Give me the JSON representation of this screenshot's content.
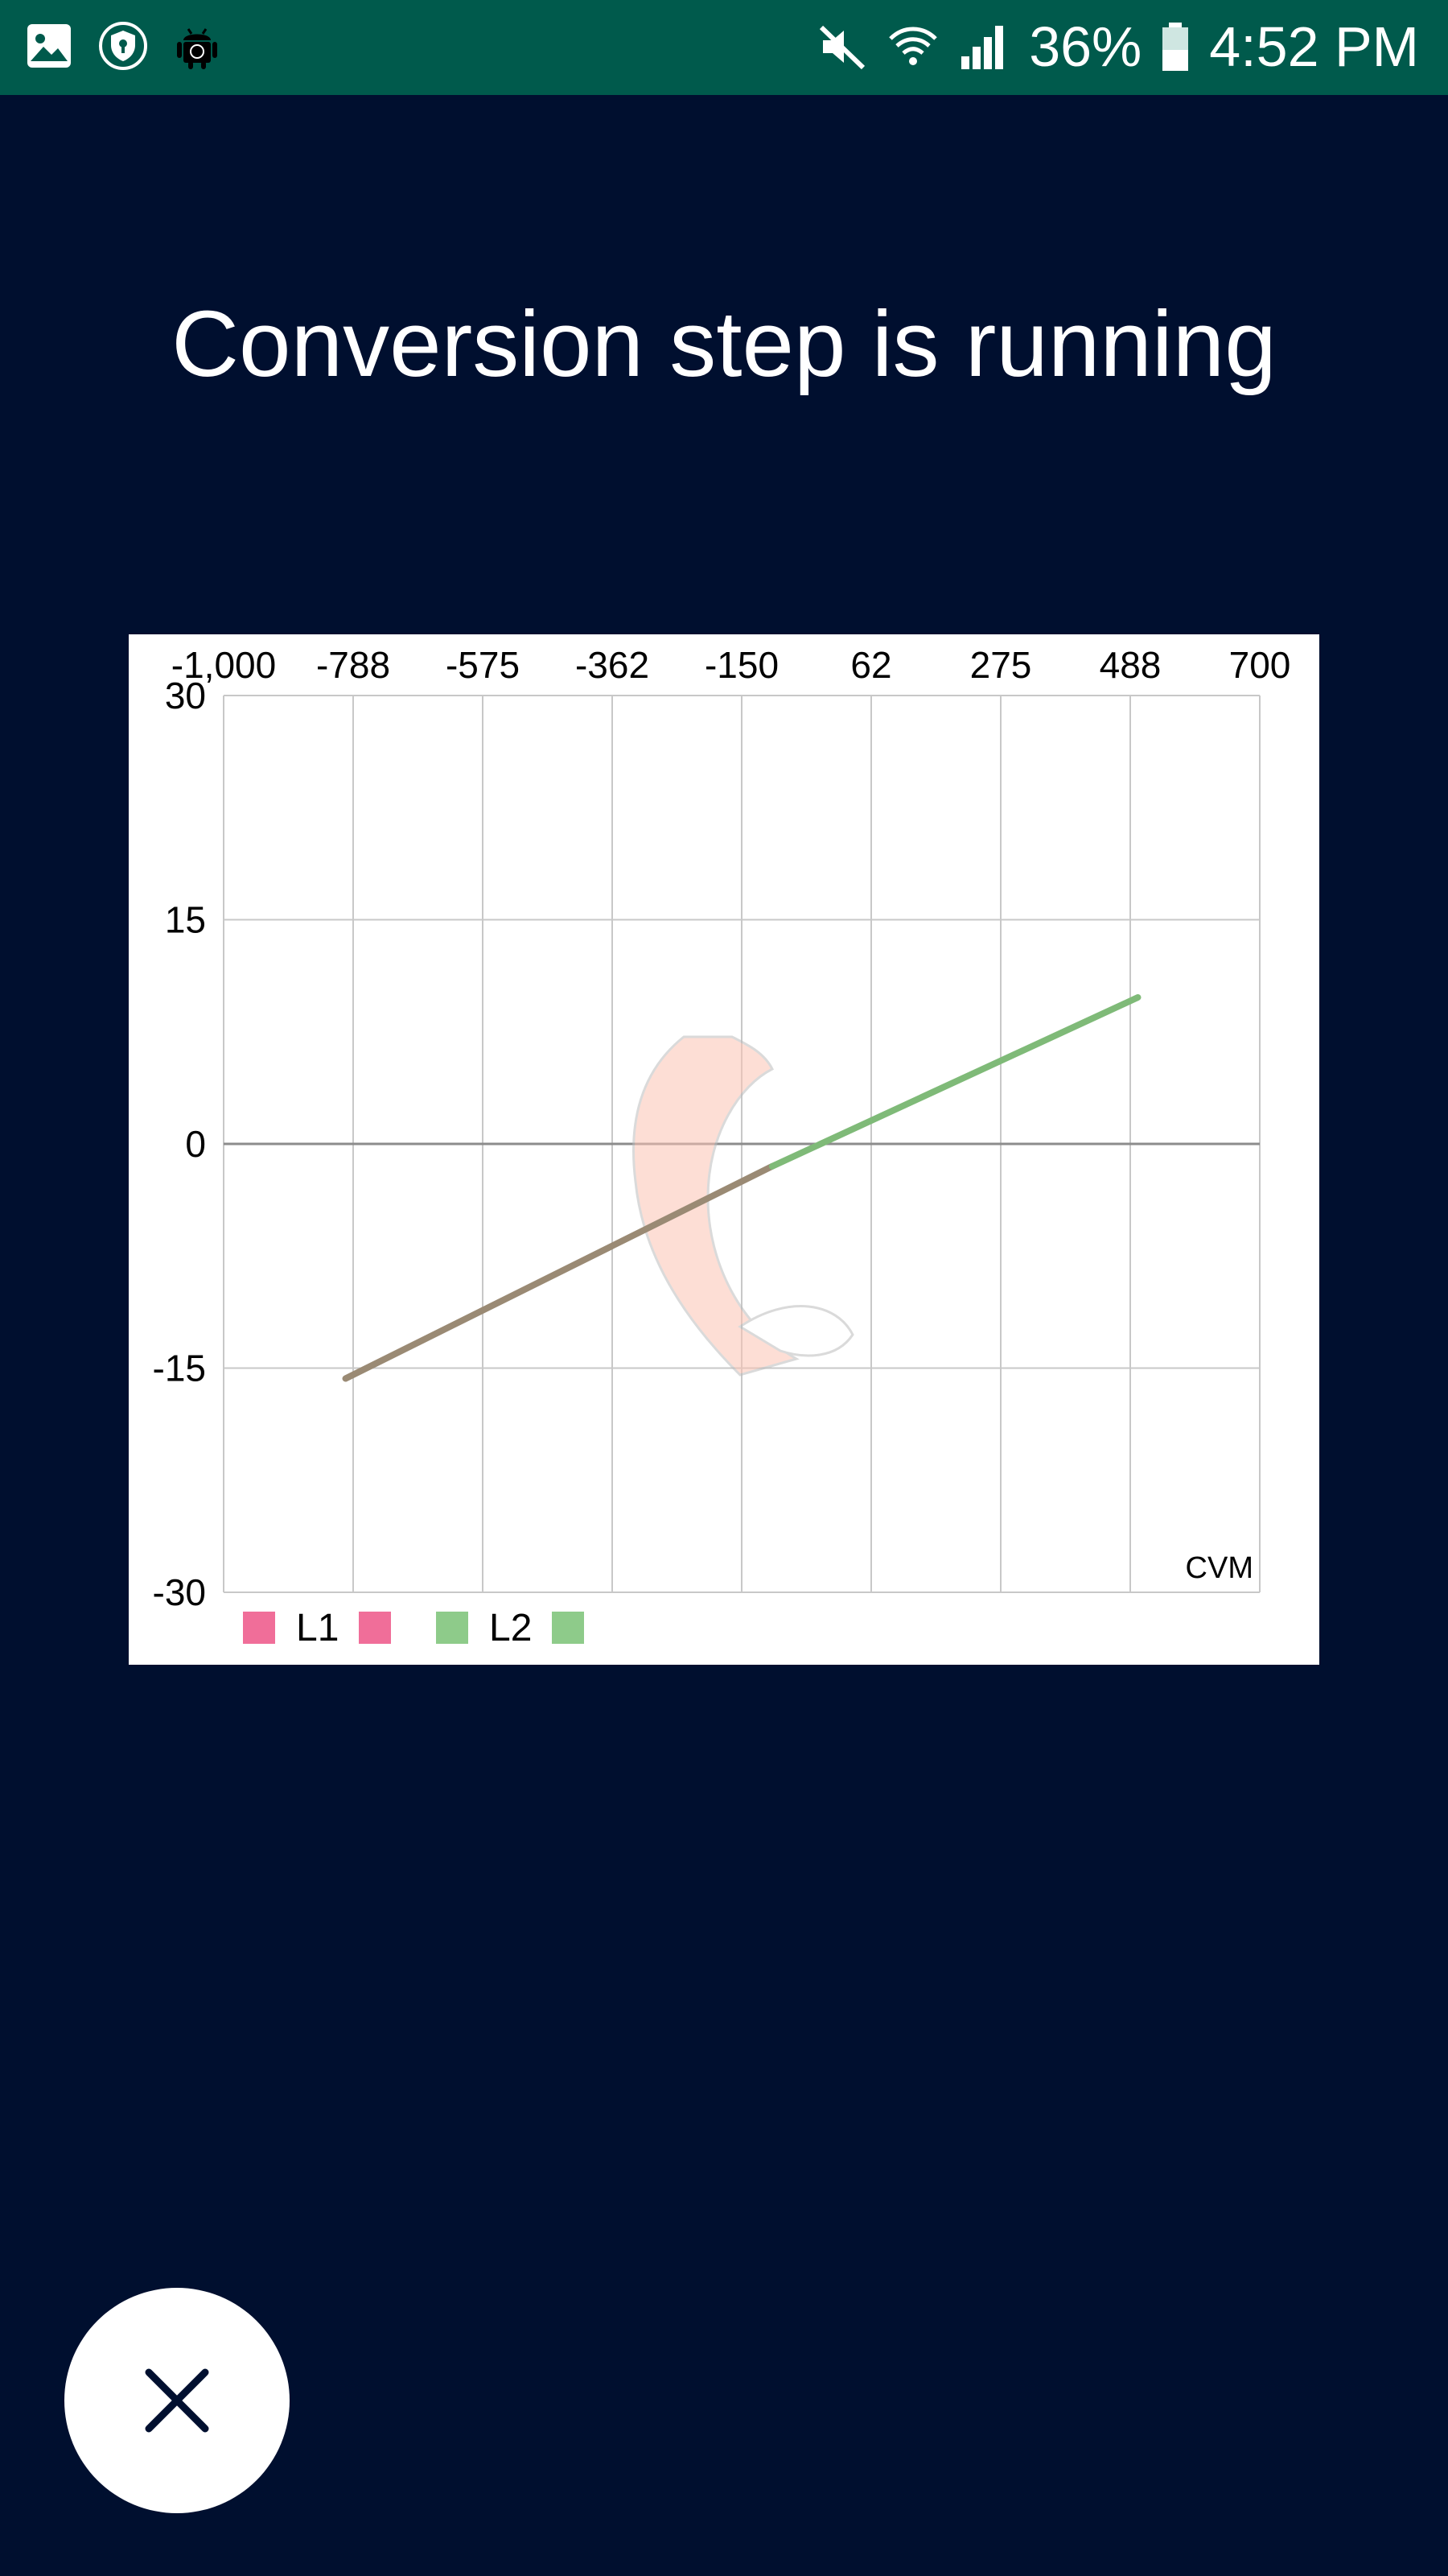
{
  "status_bar": {
    "battery_percent": "36%",
    "time": "4:52 PM",
    "left_icons": [
      "gallery-icon",
      "shield-icon",
      "android-icon"
    ],
    "right_icons": [
      "mute-icon",
      "wifi-icon",
      "signal-icon",
      "battery-icon"
    ]
  },
  "title": "Conversion step is running",
  "chart_data": {
    "type": "line",
    "x_ticks": [
      "-1,000",
      "-788",
      "-575",
      "-362",
      "-150",
      "62",
      "275",
      "488",
      "700"
    ],
    "y_ticks": [
      "30",
      "15",
      "0",
      "-15",
      "-30"
    ],
    "xlim": [
      -1000,
      700
    ],
    "ylim": [
      -30,
      30
    ],
    "axis_unit_label": "CVM",
    "grid": true,
    "legend": {
      "placement": "bottom-left",
      "entries": [
        {
          "name": "L1",
          "color": "#f06e99"
        },
        {
          "name": "L2",
          "color": "#8ecb8a"
        }
      ]
    },
    "series": [
      {
        "name": "L1",
        "color": "#9a8a74",
        "x": [
          -800,
          -100
        ],
        "y": [
          -15.7,
          -1.5
        ]
      },
      {
        "name": "L2",
        "color": "#7fba78",
        "x": [
          -100,
          500
        ],
        "y": [
          -1.5,
          9.8
        ]
      }
    ]
  },
  "close_button": {
    "icon": "close-icon"
  }
}
